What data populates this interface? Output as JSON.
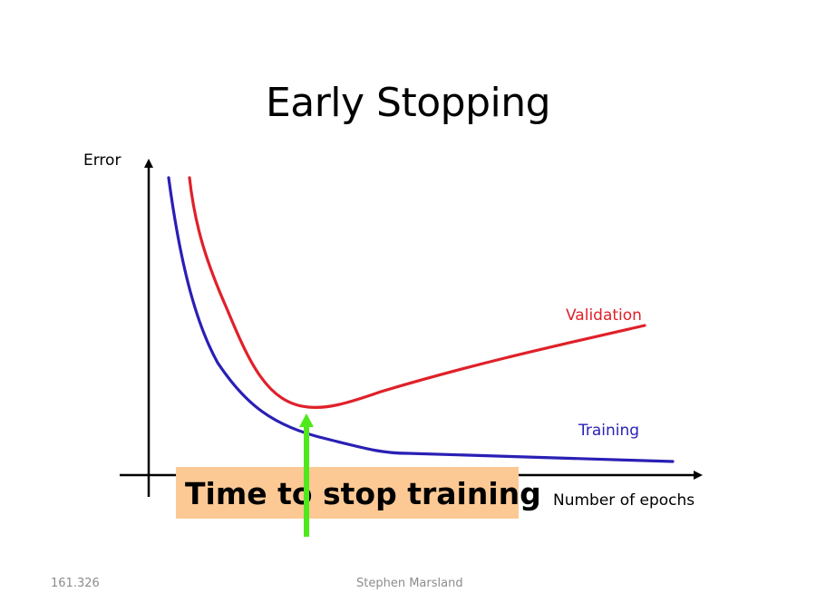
{
  "slide": {
    "title": "Early Stopping"
  },
  "diagram": {
    "y_axis_label": "Error",
    "x_axis_label": "Number of epochs",
    "validation_label": "Validation",
    "training_label": "Training",
    "callout_text": "Time to stop training"
  },
  "colors": {
    "validation": "#e0202a",
    "training": "#2a1fb5",
    "stop_arrow": "#4ee81b",
    "callout_fill": "#fcc995",
    "axes": "#000000"
  },
  "footer": {
    "left": "161.326",
    "center": "Stephen Marsland"
  }
}
